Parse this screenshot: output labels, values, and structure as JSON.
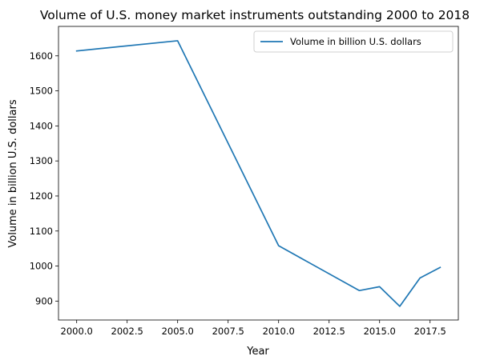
{
  "chart_data": {
    "type": "line",
    "title": "Volume of U.S. money market instruments outstanding 2000 to 2018",
    "xlabel": "Year",
    "ylabel": "Volume in billion U.S. dollars",
    "xlim": [
      1999.1,
      2018.9
    ],
    "ylim": [
      846,
      1684
    ],
    "xticks": [
      2000.0,
      2002.5,
      2005.0,
      2007.5,
      2010.0,
      2012.5,
      2015.0,
      2017.5
    ],
    "xtick_labels": [
      "2000.0",
      "2002.5",
      "2005.0",
      "2007.5",
      "2010.0",
      "2012.5",
      "2015.0",
      "2017.5"
    ],
    "yticks": [
      900,
      1000,
      1100,
      1200,
      1300,
      1400,
      1500,
      1600
    ],
    "ytick_labels": [
      "900",
      "1000",
      "1100",
      "1200",
      "1300",
      "1400",
      "1500",
      "1600"
    ],
    "grid": false,
    "legend_position": "top-right",
    "series": [
      {
        "name": "Volume in billion U.S. dollars",
        "color": "#1f77b4",
        "x": [
          2000,
          2005,
          2010,
          2014,
          2015,
          2016,
          2017,
          2018
        ],
        "y": [
          1614,
          1643,
          1058,
          930,
          941,
          885,
          966,
          996
        ]
      }
    ]
  }
}
